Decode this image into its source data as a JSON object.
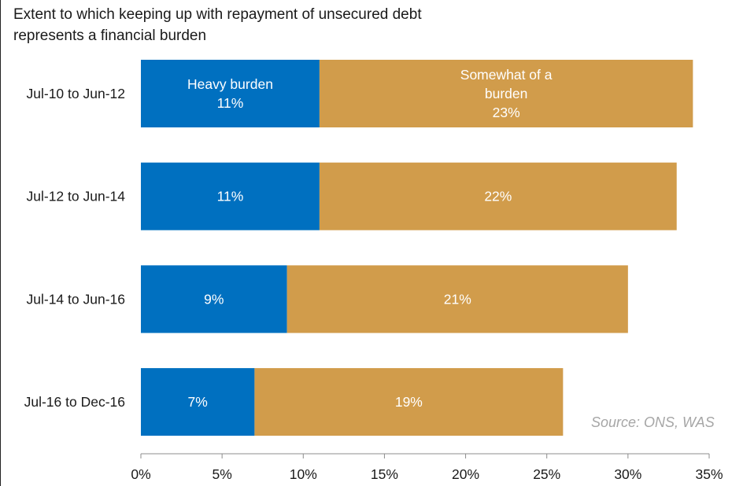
{
  "chart_data": {
    "type": "bar",
    "orientation": "horizontal",
    "stacked": true,
    "title": "Extent to which keeping up with repayment of unsecured debt represents a financial burden",
    "title_lines": [
      "Extent to which keeping up with repayment of unsecured debt",
      "represents a financial burden"
    ],
    "categories": [
      "Jul-10 to Jun-12",
      "Jul-12 to Jun-14",
      "Jul-14 to Jun-16",
      "Jul-16 to Dec-16"
    ],
    "series": [
      {
        "name": "Heavy burden",
        "color": "#0070c0",
        "values": [
          11,
          11,
          9,
          7
        ],
        "labels": [
          "11%",
          "11%",
          "9%",
          "7%"
        ],
        "first_label_lines": [
          "Heavy burden",
          "11%"
        ]
      },
      {
        "name": "Somewhat of a burden",
        "color": "#d19c4b",
        "values": [
          23,
          22,
          21,
          19
        ],
        "labels": [
          "23%",
          "22%",
          "21%",
          "19%"
        ],
        "first_label_lines": [
          "Somewhat of a",
          "burden",
          "23%"
        ]
      }
    ],
    "xlim": [
      0,
      35
    ],
    "xticks": [
      0,
      5,
      10,
      15,
      20,
      25,
      30,
      35
    ],
    "xtick_labels": [
      "0%",
      "5%",
      "10%",
      "15%",
      "20%",
      "25%",
      "30%",
      "35%"
    ],
    "grid": false,
    "legend": "none (series names shown inside first bar)",
    "source": "Source: ONS, WAS"
  }
}
